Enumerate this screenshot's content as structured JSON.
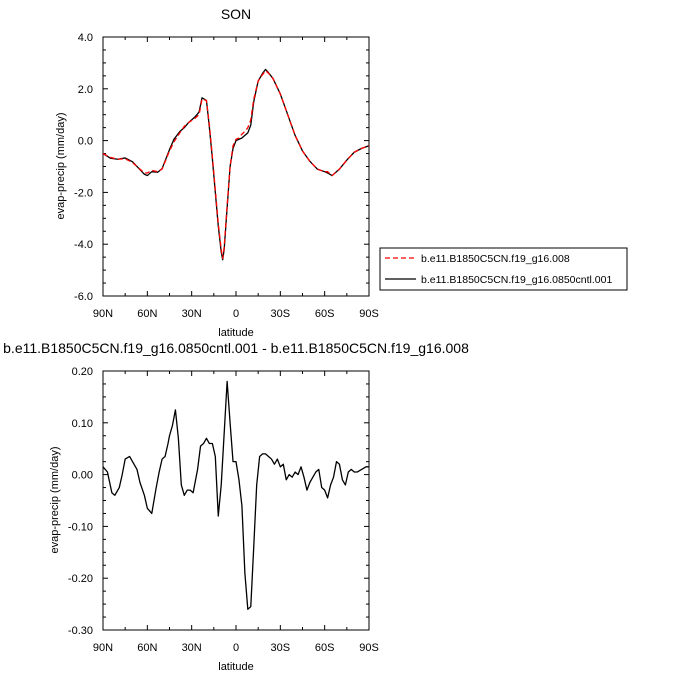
{
  "chart_data": [
    {
      "type": "line",
      "title": "SON",
      "xlabel": "latitude",
      "ylabel": "evap-precip (mm/day)",
      "xlim": [
        90,
        -90
      ],
      "ylim": [
        -6.0,
        4.0
      ],
      "xticks": [
        90,
        60,
        30,
        0,
        -30,
        -60,
        -90
      ],
      "xtick_labels": [
        "90N",
        "60N",
        "30N",
        "0",
        "30S",
        "60S",
        "90S"
      ],
      "yticks": [
        -6.0,
        -4.0,
        -2.0,
        0.0,
        2.0,
        4.0
      ],
      "ytick_labels": [
        "-6.0",
        "-4.0",
        "-2.0",
        "0.0",
        "2.0",
        "4.0"
      ],
      "grid": false,
      "legend_position": "right",
      "series": [
        {
          "name": "b.e11.B1850C5CN.f19_g16.008",
          "color": "#ff0000",
          "dash": "dashed",
          "x": [
            90,
            85,
            80,
            75,
            70,
            65,
            62,
            60,
            57,
            53,
            50,
            45,
            42,
            38,
            35,
            32,
            28,
            25,
            23,
            20,
            18,
            16,
            14,
            12,
            10,
            9,
            8,
            6,
            4,
            2,
            0,
            -2,
            -4,
            -6,
            -8,
            -10,
            -12,
            -15,
            -18,
            -20,
            -22,
            -25,
            -30,
            -35,
            -40,
            -45,
            -50,
            -55,
            -60,
            -62,
            -65,
            -70,
            -75,
            -80,
            -85,
            -90
          ],
          "y": [
            -0.5,
            -0.65,
            -0.72,
            -0.7,
            -0.85,
            -1.1,
            -1.25,
            -1.25,
            -1.15,
            -1.2,
            -1.1,
            -0.4,
            -0.05,
            0.3,
            0.55,
            0.7,
            0.85,
            1.0,
            1.6,
            1.55,
            0.6,
            -0.6,
            -1.9,
            -3.2,
            -4.2,
            -4.55,
            -4.1,
            -2.5,
            -1.0,
            -0.2,
            0.05,
            0.1,
            0.25,
            0.35,
            0.5,
            0.8,
            1.6,
            2.3,
            2.55,
            2.7,
            2.6,
            2.4,
            1.8,
            1.0,
            0.2,
            -0.4,
            -0.8,
            -1.1,
            -1.2,
            -1.2,
            -1.35,
            -1.1,
            -0.75,
            -0.45,
            -0.3,
            -0.2
          ]
        },
        {
          "name": "b.e11.B1850C5CN.f19_g16.0850cntl.001",
          "color": "#000000",
          "dash": "solid",
          "x": [
            90,
            85,
            80,
            75,
            70,
            65,
            62,
            60,
            57,
            53,
            50,
            45,
            42,
            38,
            35,
            32,
            28,
            25,
            23,
            20,
            18,
            16,
            14,
            12,
            10,
            9,
            8,
            6,
            4,
            2,
            0,
            -2,
            -4,
            -6,
            -8,
            -10,
            -12,
            -15,
            -18,
            -20,
            -22,
            -25,
            -30,
            -35,
            -40,
            -45,
            -50,
            -55,
            -60,
            -62,
            -65,
            -70,
            -75,
            -80,
            -85,
            -90
          ],
          "y": [
            -0.5,
            -0.68,
            -0.72,
            -0.67,
            -0.82,
            -1.12,
            -1.3,
            -1.35,
            -1.2,
            -1.22,
            -1.08,
            -0.35,
            0.05,
            0.35,
            0.5,
            0.7,
            0.9,
            1.1,
            1.65,
            1.55,
            0.5,
            -0.7,
            -2.0,
            -3.3,
            -4.3,
            -4.6,
            -4.2,
            -2.6,
            -1.0,
            -0.3,
            0.0,
            0.05,
            0.1,
            0.2,
            0.3,
            0.6,
            1.5,
            2.3,
            2.6,
            2.75,
            2.62,
            2.4,
            1.8,
            1.0,
            0.2,
            -0.4,
            -0.8,
            -1.1,
            -1.2,
            -1.25,
            -1.35,
            -1.1,
            -0.75,
            -0.45,
            -0.3,
            -0.2
          ]
        }
      ]
    },
    {
      "type": "line",
      "title": "b.e11.B1850C5CN.f19_g16.0850cntl.001 - b.e11.B1850C5CN.f19_g16.008",
      "xlabel": "latitude",
      "ylabel": "evap-precip (mm/day)",
      "xlim": [
        90,
        -90
      ],
      "ylim": [
        -0.3,
        0.2
      ],
      "xticks": [
        90,
        60,
        30,
        0,
        -30,
        -60,
        -90
      ],
      "xtick_labels": [
        "90N",
        "60N",
        "30N",
        "0",
        "30S",
        "60S",
        "90S"
      ],
      "yticks": [
        -0.3,
        -0.2,
        -0.1,
        0.0,
        0.1,
        0.2
      ],
      "ytick_labels": [
        "-0.30",
        "-0.20",
        "-0.10",
        "0.00",
        "0.10",
        "0.20"
      ],
      "grid": false,
      "series": [
        {
          "color": "#000000",
          "x": [
            90,
            87,
            84,
            82,
            79,
            77,
            75,
            72,
            70,
            67,
            65,
            62,
            60,
            57,
            54,
            52,
            50,
            48,
            46,
            45,
            43,
            41,
            39,
            37,
            35,
            33,
            31,
            29,
            26,
            24,
            22,
            20,
            18,
            16,
            14,
            12,
            10,
            8,
            6,
            4,
            2,
            0,
            -2,
            -4,
            -6,
            -8,
            -10,
            -12,
            -14,
            -16,
            -18,
            -20,
            -22,
            -24,
            -26,
            -28,
            -30,
            -32,
            -34,
            -36,
            -38,
            -40,
            -42,
            -44,
            -46,
            -48,
            -50,
            -52,
            -54,
            -56,
            -58,
            -60,
            -62,
            -64,
            -66,
            -68,
            -70,
            -72,
            -74,
            -76,
            -78,
            -80,
            -82,
            -85,
            -88,
            -90
          ],
          "y": [
            0.015,
            0.005,
            -0.035,
            -0.04,
            -0.025,
            0.0,
            0.03,
            0.035,
            0.025,
            0.01,
            -0.015,
            -0.04,
            -0.065,
            -0.075,
            -0.025,
            0.005,
            0.03,
            0.035,
            0.06,
            0.075,
            0.095,
            0.125,
            0.07,
            -0.02,
            -0.04,
            -0.03,
            -0.03,
            -0.035,
            0.01,
            0.055,
            0.06,
            0.07,
            0.06,
            0.06,
            0.035,
            -0.08,
            -0.02,
            0.08,
            0.18,
            0.1,
            0.025,
            0.025,
            -0.01,
            -0.06,
            -0.19,
            -0.26,
            -0.255,
            -0.14,
            -0.02,
            0.035,
            0.04,
            0.04,
            0.035,
            0.03,
            0.02,
            0.03,
            0.015,
            0.02,
            -0.01,
            0.0,
            -0.005,
            0.005,
            0.0,
            0.015,
            -0.005,
            -0.03,
            -0.015,
            -0.005,
            0.005,
            0.01,
            -0.025,
            -0.03,
            -0.045,
            -0.02,
            -0.005,
            0.025,
            0.02,
            -0.01,
            -0.02,
            0.005,
            0.01,
            0.005,
            0.005,
            0.01,
            0.015,
            0.015
          ]
        }
      ]
    }
  ]
}
